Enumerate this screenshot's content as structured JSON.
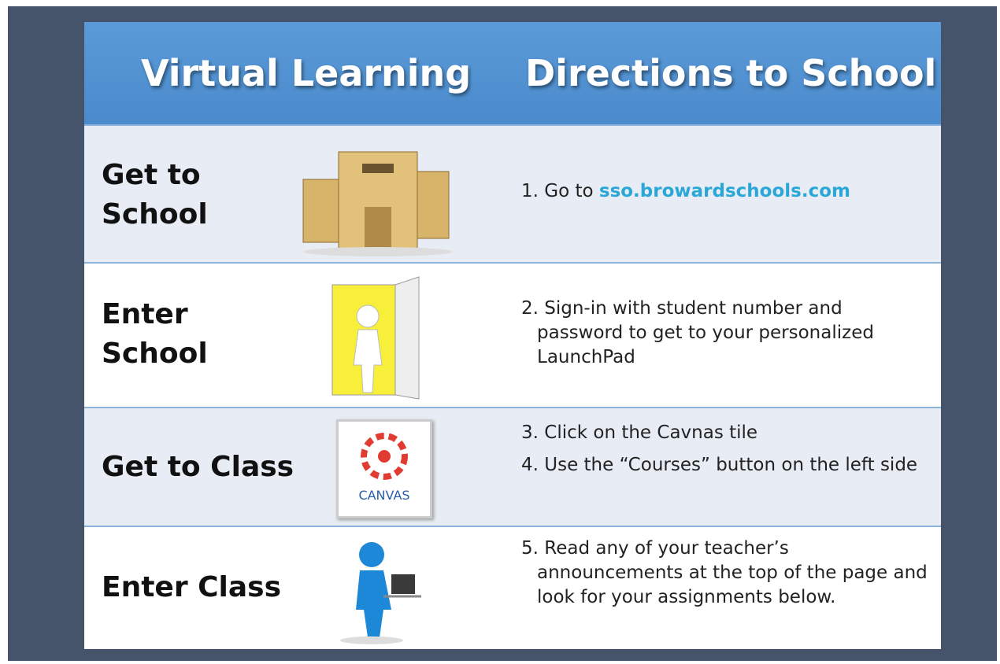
{
  "header": {
    "title_left": "Virtual Learning",
    "title_right": "Directions to School"
  },
  "rows": [
    {
      "label_line1": "Get to",
      "label_line2": "School",
      "steps": [
        {
          "text": "1.   Go to",
          "link": "sso.browardschools.com"
        }
      ]
    },
    {
      "label_line1": "Enter",
      "label_line2": "School",
      "steps": [
        {
          "text": "2. Sign-in with student number and password to get to your personalized LaunchPad"
        }
      ]
    },
    {
      "label_line1": "Get to Class",
      "icon_label": "CANVAS",
      "steps": [
        {
          "text": "3. Click on the Cavnas tile"
        },
        {
          "text": "4. Use the “Courses” button on the left side"
        }
      ]
    },
    {
      "label_line1": "Enter Class",
      "steps": [
        {
          "text": "5. Read any of your teacher’s announcements at the top of the page and look for your assignments below."
        }
      ]
    }
  ]
}
